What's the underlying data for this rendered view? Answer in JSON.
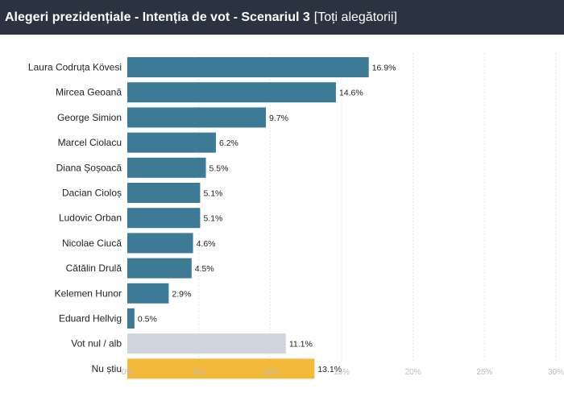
{
  "header": {
    "title": "Alegeri prezidențiale - Intenția de vot - Scenariul 3",
    "subtitle": "[Toți alegătorii]"
  },
  "chart_data": {
    "type": "bar",
    "orientation": "horizontal",
    "title": "Alegeri prezidențiale - Intenția de vot - Scenariul 3",
    "subtitle": "[Toți alegătorii]",
    "xlabel": "",
    "ylabel": "",
    "xlim": [
      0,
      30
    ],
    "grid": true,
    "legend": "none",
    "categories": [
      "Laura Codruța Kövesi",
      "Mircea Geoană",
      "George Simion",
      "Marcel Ciolacu",
      "Diana Șoșoacă",
      "Dacian Cioloș",
      "Ludovic Orban",
      "Nicolae Ciucă",
      "Cătălin Drulă",
      "Kelemen Hunor",
      "Eduard Hellvig",
      "Vot nul / alb",
      "Nu știu"
    ],
    "values": [
      16.9,
      14.6,
      9.7,
      6.2,
      5.5,
      5.1,
      5.1,
      4.6,
      4.5,
      2.9,
      0.5,
      11.1,
      13.1
    ],
    "value_labels": [
      "16.9%",
      "14.6%",
      "9.7%",
      "6.2%",
      "5.5%",
      "5.1%",
      "5.1%",
      "4.6%",
      "4.5%",
      "2.9%",
      "0.5%",
      "11.1%",
      "13.1%"
    ],
    "ticks": [
      0,
      5,
      10,
      15,
      20,
      25,
      30
    ],
    "tick_labels": [
      "0%",
      "5%",
      "10%",
      "15%",
      "20%",
      "25%",
      "30%"
    ],
    "colors": [
      "#3d7a96",
      "#3d7a96",
      "#3d7a96",
      "#3d7a96",
      "#3d7a96",
      "#3d7a96",
      "#3d7a96",
      "#3d7a96",
      "#3d7a96",
      "#3d7a96",
      "#3d7a96",
      "#ced5dc",
      "#f2b93b"
    ]
  }
}
